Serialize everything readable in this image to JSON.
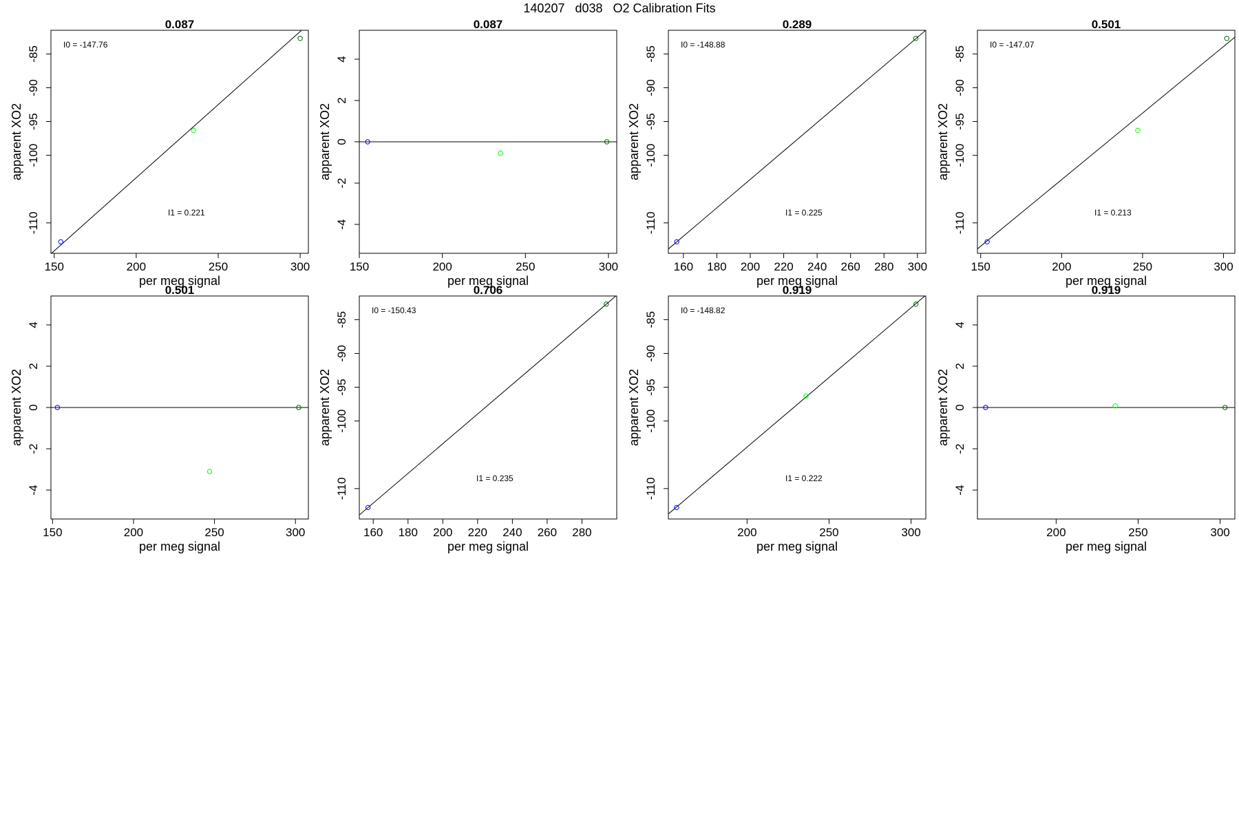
{
  "figure": {
    "title": "140207   d038   O2 Calibration Fits"
  },
  "chart_data": [
    {
      "type": "scatter",
      "title": "0.087",
      "xlabel": "per meg signal",
      "ylabel": "apparent XO2",
      "xlim": [
        148,
        305
      ],
      "ylim": [
        -114.5,
        -81.5
      ],
      "xticks": [
        150,
        200,
        250,
        300
      ],
      "yticks": [
        -85,
        -90,
        -95,
        -100,
        -110
      ],
      "points": [
        {
          "x": 154,
          "y": -112.8,
          "color": "#0000ff"
        },
        {
          "x": 235,
          "y": -96.3,
          "color": "#00ff00"
        },
        {
          "x": 300,
          "y": -82.7,
          "color": "#006400"
        }
      ],
      "fit_line": {
        "intercept": -146.6,
        "slope": 0.2164
      },
      "annotations": {
        "i0": "I0 =  -147.76",
        "i1": "I1 =  0.221"
      }
    },
    {
      "type": "scatter",
      "title": "0.087",
      "xlabel": "per meg signal",
      "ylabel": "apparent XO2",
      "xlim": [
        150,
        305
      ],
      "ylim": [
        -5.4,
        5.4
      ],
      "xticks": [
        150,
        200,
        250,
        300
      ],
      "yticks": [
        4,
        2,
        0,
        -2,
        -4
      ],
      "points": [
        {
          "x": 155,
          "y": 0,
          "color": "#0000ff"
        },
        {
          "x": 235,
          "y": -0.55,
          "color": "#00ff00"
        },
        {
          "x": 299,
          "y": 0,
          "color": "#006400"
        }
      ],
      "fit_line": {
        "intercept": 0,
        "slope": 0
      },
      "annotations": {}
    },
    {
      "type": "scatter",
      "title": "0.289",
      "xlabel": "per meg signal",
      "ylabel": "apparent XO2",
      "xlim": [
        151,
        305
      ],
      "ylim": [
        -114.5,
        -81.5
      ],
      "xticks": [
        160,
        180,
        200,
        220,
        240,
        260,
        280,
        300
      ],
      "yticks": [
        -85,
        -90,
        -95,
        -100,
        -110
      ],
      "points": [
        {
          "x": 156,
          "y": -112.8,
          "color": "#0000ff"
        },
        {
          "x": 299,
          "y": -82.7,
          "color": "#006400"
        }
      ],
      "fit_line": {
        "intercept": -145.6,
        "slope": 0.2102
      },
      "annotations": {
        "i0": "I0 =  -148.88",
        "i1": "I1 =  0.225"
      }
    },
    {
      "type": "scatter",
      "title": "0.501",
      "xlabel": "per meg signal",
      "ylabel": "apparent XO2",
      "xlim": [
        148,
        307
      ],
      "ylim": [
        -114.5,
        -81.5
      ],
      "xticks": [
        150,
        200,
        250,
        300
      ],
      "yticks": [
        -85,
        -90,
        -95,
        -100,
        -110
      ],
      "points": [
        {
          "x": 154,
          "y": -112.8,
          "color": "#0000ff"
        },
        {
          "x": 247,
          "y": -96.3,
          "color": "#00ff00"
        },
        {
          "x": 302,
          "y": -82.7,
          "color": "#006400"
        }
      ],
      "fit_line": {
        "intercept": -143.0,
        "slope": 0.197
      },
      "annotations": {
        "i0": "I0 =  -147.07",
        "i1": "I1 =  0.213"
      }
    },
    {
      "type": "scatter",
      "title": "0.501",
      "xlabel": "per meg signal",
      "ylabel": "apparent XO2",
      "xlim": [
        149,
        308
      ],
      "ylim": [
        -5.4,
        5.4
      ],
      "xticks": [
        150,
        200,
        250,
        300
      ],
      "yticks": [
        4,
        2,
        0,
        -2,
        -4
      ],
      "points": [
        {
          "x": 153,
          "y": 0,
          "color": "#0000ff"
        },
        {
          "x": 247,
          "y": -3.1,
          "color": "#00ff00"
        },
        {
          "x": 302,
          "y": 0,
          "color": "#006400"
        }
      ],
      "fit_line": {
        "intercept": 0,
        "slope": 0
      },
      "annotations": {}
    },
    {
      "type": "scatter",
      "title": "0.706",
      "xlabel": "per meg signal",
      "ylabel": "apparent XO2",
      "xlim": [
        152,
        300
      ],
      "ylim": [
        -114.5,
        -81.5
      ],
      "xticks": [
        160,
        180,
        200,
        220,
        240,
        260,
        280
      ],
      "yticks": [
        -85,
        -90,
        -95,
        -100,
        -110
      ],
      "points": [
        {
          "x": 157,
          "y": -112.8,
          "color": "#0000ff"
        },
        {
          "x": 294,
          "y": -82.7,
          "color": "#006400"
        }
      ],
      "fit_line": {
        "intercept": -147.3,
        "slope": 0.2197
      },
      "annotations": {
        "i0": "I0 =  -150.43",
        "i1": "I1 =  0.235"
      }
    },
    {
      "type": "scatter",
      "title": "0.919",
      "xlabel": "per meg signal",
      "ylabel": "apparent XO2",
      "xlim": [
        152,
        309
      ],
      "ylim": [
        -114.5,
        -81.5
      ],
      "xticks": [
        200,
        250,
        300
      ],
      "yticks": [
        -85,
        -90,
        -95,
        -100,
        -110
      ],
      "points": [
        {
          "x": 157,
          "y": -112.8,
          "color": "#0000ff"
        },
        {
          "x": 236,
          "y": -96.3,
          "color": "#00ff00"
        },
        {
          "x": 303,
          "y": -82.7,
          "color": "#006400"
        }
      ],
      "fit_line": {
        "intercept": -145.1,
        "slope": 0.2062
      },
      "annotations": {
        "i0": "I0 =  -148.82",
        "i1": "I1 =  0.222"
      }
    },
    {
      "type": "scatter",
      "title": "0.919",
      "xlabel": "per meg signal",
      "ylabel": "apparent XO2",
      "xlim": [
        152,
        309
      ],
      "ylim": [
        -5.4,
        5.4
      ],
      "xticks": [
        200,
        250,
        300
      ],
      "yticks": [
        4,
        2,
        0,
        -2,
        -4
      ],
      "points": [
        {
          "x": 157,
          "y": 0,
          "color": "#0000ff"
        },
        {
          "x": 236,
          "y": 0.08,
          "color": "#00ff00"
        },
        {
          "x": 303,
          "y": 0,
          "color": "#006400"
        }
      ],
      "fit_line": {
        "intercept": 0,
        "slope": 0
      },
      "annotations": {}
    }
  ]
}
